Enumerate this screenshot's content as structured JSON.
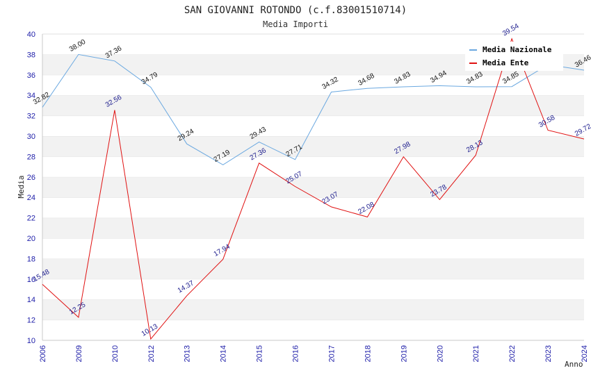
{
  "chart_data": {
    "type": "line",
    "title": "SAN GIOVANNI ROTONDO (c.f.83001510714)",
    "subtitle": "Media Importi",
    "xlabel": "Anno",
    "ylabel": "Media",
    "ylim": [
      10,
      40
    ],
    "y_ticks": [
      "10",
      "12",
      "14",
      "16",
      "18",
      "20",
      "22",
      "24",
      "26",
      "28",
      "30",
      "32",
      "34",
      "36",
      "38",
      "40"
    ],
    "categories": [
      "2006",
      "2009",
      "2010",
      "2012",
      "2013",
      "2014",
      "2015",
      "2016",
      "2017",
      "2018",
      "2019",
      "2020",
      "2021",
      "2022",
      "2023",
      "2024"
    ],
    "grid": "horizontal alternating bands",
    "legend_position": "top-right",
    "series": [
      {
        "name": "Media Nazionale",
        "color": "#6aa8e0",
        "values": [
          32.82,
          38.0,
          37.36,
          34.79,
          29.24,
          27.19,
          29.43,
          27.71,
          34.32,
          34.68,
          34.83,
          34.94,
          34.83,
          34.85,
          37.0,
          36.46
        ],
        "labels": [
          "32.82",
          "38.00",
          "37.36",
          "34.79",
          "29.24",
          "27.19",
          "29.43",
          "27.71",
          "34.32",
          "34.68",
          "34.83",
          "34.94",
          "34.83",
          "34.85",
          "",
          "36.46"
        ]
      },
      {
        "name": "Media Ente",
        "color": "#e01010",
        "values": [
          15.48,
          12.25,
          32.56,
          10.13,
          14.37,
          17.94,
          27.36,
          25.07,
          23.07,
          22.08,
          27.98,
          23.78,
          28.13,
          39.54,
          30.58,
          29.72
        ],
        "labels": [
          "15.48",
          "12.25",
          "32.56",
          "10.13",
          "14.37",
          "17.94",
          "27.36",
          "25.07",
          "23.07",
          "22.08",
          "27.98",
          "23.78",
          "28.13",
          "39.54",
          "30.58",
          "29.72"
        ]
      }
    ]
  }
}
